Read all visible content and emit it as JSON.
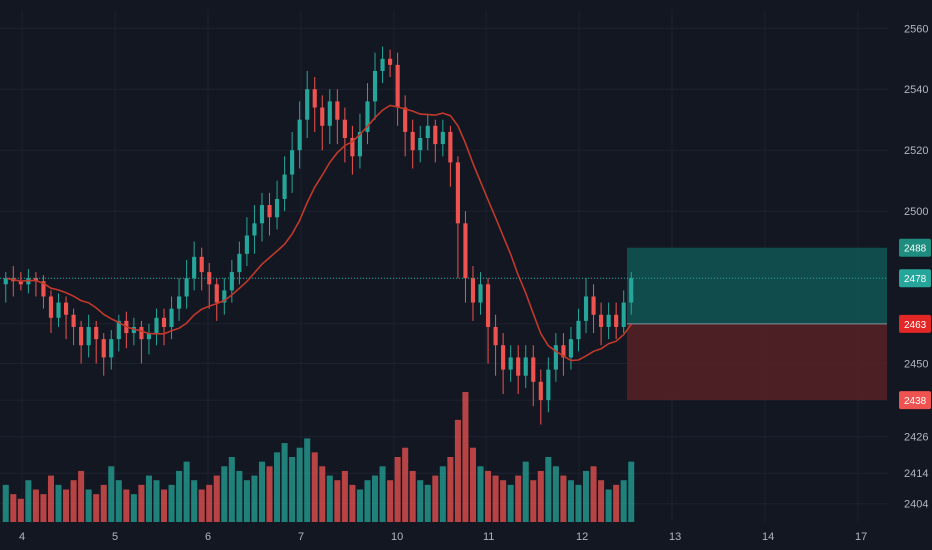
{
  "chart_data": {
    "type": "candlestick",
    "x_ticks": [
      "4",
      "5",
      "6",
      "7",
      "10",
      "11",
      "12",
      "13",
      "14",
      "17"
    ],
    "y_ticks": [
      2560,
      2540,
      2520,
      2500,
      2478,
      2463,
      2450,
      2438,
      2426,
      2414,
      2404
    ],
    "ylim": [
      2398,
      2566
    ],
    "grid": true,
    "colors": {
      "background": "#131722",
      "grid": "#1e2230",
      "up": "#26a69a",
      "down": "#ef5350",
      "ma": "#c0392b",
      "price_line": "#26a69a",
      "target_zone": "#0f5f5a",
      "stop_zone": "#5a2226",
      "axis_text": "#b2b5be"
    },
    "price_labels": [
      {
        "value": "2488",
        "color": "#1e8c7e"
      },
      {
        "value": "2478",
        "color": "#26a69a"
      },
      {
        "value": "2463",
        "color": "#e32626"
      },
      {
        "value": "2438",
        "color": "#ef5350"
      }
    ],
    "position": {
      "target": 2488,
      "entry": 2463,
      "stop": 2438,
      "last": 2478
    },
    "candles": [
      [
        2476,
        2478,
        2470,
        2480
      ],
      [
        2478,
        2477,
        2472,
        2482
      ],
      [
        2477,
        2476,
        2474,
        2480
      ],
      [
        2476,
        2478,
        2473,
        2481
      ],
      [
        2478,
        2477,
        2472,
        2480
      ],
      [
        2477,
        2472,
        2468,
        2479
      ],
      [
        2472,
        2465,
        2460,
        2474
      ],
      [
        2465,
        2470,
        2462,
        2473
      ],
      [
        2470,
        2466,
        2458,
        2472
      ],
      [
        2466,
        2462,
        2456,
        2468
      ],
      [
        2462,
        2456,
        2450,
        2464
      ],
      [
        2456,
        2462,
        2452,
        2466
      ],
      [
        2462,
        2458,
        2450,
        2464
      ],
      [
        2458,
        2452,
        2446,
        2460
      ],
      [
        2452,
        2458,
        2448,
        2461
      ],
      [
        2458,
        2464,
        2454,
        2466
      ],
      [
        2464,
        2460,
        2455,
        2467
      ],
      [
        2460,
        2462,
        2456,
        2465
      ],
      [
        2462,
        2458,
        2450,
        2464
      ],
      [
        2458,
        2460,
        2453,
        2463
      ],
      [
        2460,
        2465,
        2456,
        2468
      ],
      [
        2465,
        2462,
        2456,
        2468
      ],
      [
        2462,
        2468,
        2458,
        2472
      ],
      [
        2468,
        2472,
        2464,
        2478
      ],
      [
        2472,
        2478,
        2468,
        2484
      ],
      [
        2478,
        2485,
        2474,
        2490
      ],
      [
        2485,
        2480,
        2474,
        2488
      ],
      [
        2480,
        2476,
        2468,
        2483
      ],
      [
        2476,
        2470,
        2464,
        2478
      ],
      [
        2470,
        2474,
        2466,
        2478
      ],
      [
        2474,
        2480,
        2470,
        2484
      ],
      [
        2480,
        2486,
        2476,
        2490
      ],
      [
        2486,
        2492,
        2482,
        2498
      ],
      [
        2492,
        2496,
        2486,
        2502
      ],
      [
        2496,
        2502,
        2490,
        2506
      ],
      [
        2502,
        2498,
        2492,
        2506
      ],
      [
        2498,
        2504,
        2494,
        2510
      ],
      [
        2504,
        2512,
        2500,
        2518
      ],
      [
        2512,
        2520,
        2506,
        2526
      ],
      [
        2520,
        2530,
        2514,
        2536
      ],
      [
        2530,
        2540,
        2524,
        2546
      ],
      [
        2540,
        2534,
        2526,
        2544
      ],
      [
        2534,
        2528,
        2520,
        2538
      ],
      [
        2528,
        2536,
        2522,
        2540
      ],
      [
        2536,
        2530,
        2522,
        2540
      ],
      [
        2530,
        2524,
        2516,
        2534
      ],
      [
        2524,
        2518,
        2512,
        2528
      ],
      [
        2518,
        2526,
        2514,
        2532
      ],
      [
        2526,
        2536,
        2522,
        2542
      ],
      [
        2536,
        2546,
        2530,
        2552
      ],
      [
        2546,
        2550,
        2542,
        2554
      ],
      [
        2550,
        2548,
        2544,
        2553
      ],
      [
        2548,
        2534,
        2528,
        2552
      ],
      [
        2534,
        2526,
        2518,
        2538
      ],
      [
        2526,
        2520,
        2514,
        2530
      ],
      [
        2520,
        2524,
        2516,
        2528
      ],
      [
        2524,
        2528,
        2520,
        2532
      ],
      [
        2528,
        2522,
        2516,
        2530
      ],
      [
        2522,
        2526,
        2518,
        2530
      ],
      [
        2526,
        2516,
        2508,
        2528
      ],
      [
        2516,
        2496,
        2478,
        2518
      ],
      [
        2496,
        2478,
        2470,
        2500
      ],
      [
        2478,
        2470,
        2464,
        2482
      ],
      [
        2470,
        2476,
        2466,
        2480
      ],
      [
        2476,
        2462,
        2450,
        2478
      ],
      [
        2462,
        2456,
        2446,
        2466
      ],
      [
        2456,
        2448,
        2440,
        2460
      ],
      [
        2448,
        2452,
        2444,
        2456
      ],
      [
        2452,
        2446,
        2440,
        2456
      ],
      [
        2446,
        2452,
        2442,
        2456
      ],
      [
        2452,
        2444,
        2436,
        2456
      ],
      [
        2444,
        2438,
        2430,
        2448
      ],
      [
        2438,
        2448,
        2434,
        2452
      ],
      [
        2448,
        2456,
        2444,
        2460
      ],
      [
        2456,
        2452,
        2446,
        2460
      ],
      [
        2452,
        2458,
        2448,
        2462
      ],
      [
        2458,
        2464,
        2454,
        2468
      ],
      [
        2464,
        2472,
        2460,
        2478
      ],
      [
        2472,
        2466,
        2460,
        2476
      ],
      [
        2466,
        2462,
        2456,
        2470
      ],
      [
        2462,
        2466,
        2458,
        2470
      ],
      [
        2466,
        2462,
        2458,
        2470
      ],
      [
        2462,
        2470,
        2460,
        2474
      ],
      [
        2470,
        2478,
        2466,
        2480
      ]
    ],
    "volumes": [
      8,
      6,
      5,
      9,
      7,
      6,
      10,
      8,
      7,
      9,
      11,
      7,
      6,
      8,
      12,
      9,
      7,
      6,
      8,
      10,
      9,
      7,
      8,
      11,
      13,
      9,
      7,
      8,
      10,
      12,
      14,
      11,
      9,
      10,
      13,
      12,
      15,
      17,
      14,
      16,
      18,
      15,
      12,
      10,
      9,
      11,
      8,
      7,
      9,
      10,
      12,
      9,
      14,
      16,
      11,
      9,
      8,
      10,
      12,
      14,
      22,
      28,
      16,
      12,
      11,
      10,
      9,
      8,
      10,
      13,
      9,
      11,
      14,
      12,
      10,
      9,
      8,
      11,
      12,
      9,
      7,
      8,
      9,
      13
    ]
  }
}
